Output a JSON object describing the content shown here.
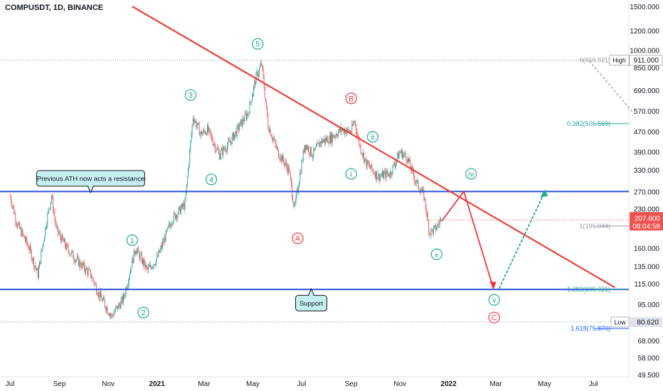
{
  "symbol_title": "COMPUSDT, 1D, BINANCE",
  "colors": {
    "up": "#26a69a",
    "down": "#ef5350",
    "trend": "#f0302a",
    "level": "#2952d9",
    "wave": "#22ab94",
    "corrective": "#f23645",
    "projection_down": "#f23645",
    "projection_up": "#22ab94",
    "fib_blue": "#2962ff",
    "callout_bg": "#c6efef"
  },
  "chart_data": {
    "type": "candlestick",
    "title": "COMPUSDT, 1D, BINANCE",
    "y_scale": "log",
    "ylim": [
      49.5,
      1500
    ],
    "x_ticks": [
      "Jul",
      "Sep",
      "Nov",
      "2021",
      "Mar",
      "May",
      "Jul",
      "Sep",
      "Nov",
      "2022",
      "Mar",
      "May",
      "Jul"
    ],
    "y_ticks": [
      "1500.000",
      "1200.000",
      "1000.000",
      "850.000",
      "690.000",
      "570.000",
      "470.000",
      "390.000",
      "330.000",
      "270.000",
      "230.000",
      "160.000",
      "135.000",
      "115.000",
      "95.000",
      "80.620",
      "68.000",
      "58.000",
      "49.500"
    ],
    "y_tick_values": [
      1500,
      1200,
      1000,
      850,
      690,
      570,
      470,
      390,
      330,
      270,
      230,
      160,
      135,
      115,
      95,
      80.62,
      68,
      58,
      49.5
    ],
    "price_path": [
      [
        "2020-07-01",
        260
      ],
      [
        "2020-07-10",
        200
      ],
      [
        "2020-07-25",
        160
      ],
      [
        "2020-08-05",
        125
      ],
      [
        "2020-08-15",
        200
      ],
      [
        "2020-08-22",
        260
      ],
      [
        "2020-08-28",
        190
      ],
      [
        "2020-09-10",
        160
      ],
      [
        "2020-09-25",
        140
      ],
      [
        "2020-10-10",
        125
      ],
      [
        "2020-10-20",
        105
      ],
      [
        "2020-11-05",
        85
      ],
      [
        "2020-11-20",
        100
      ],
      [
        "2020-12-05",
        160
      ],
      [
        "2020-12-20",
        130
      ],
      [
        "2021-01-01",
        145
      ],
      [
        "2021-01-20",
        210
      ],
      [
        "2021-02-05",
        240
      ],
      [
        "2021-02-15",
        540
      ],
      [
        "2021-02-25",
        460
      ],
      [
        "2021-03-05",
        480
      ],
      [
        "2021-03-20",
        380
      ],
      [
        "2021-04-01",
        420
      ],
      [
        "2021-04-15",
        500
      ],
      [
        "2021-04-25",
        560
      ],
      [
        "2021-05-05",
        780
      ],
      [
        "2021-05-12",
        880
      ],
      [
        "2021-05-20",
        500
      ],
      [
        "2021-06-01",
        390
      ],
      [
        "2021-06-15",
        330
      ],
      [
        "2021-06-22",
        230
      ],
      [
        "2021-07-05",
        420
      ],
      [
        "2021-07-15",
        380
      ],
      [
        "2021-07-25",
        430
      ],
      [
        "2021-08-05",
        440
      ],
      [
        "2021-08-20",
        480
      ],
      [
        "2021-09-01",
        470
      ],
      [
        "2021-09-05",
        520
      ],
      [
        "2021-09-12",
        410
      ],
      [
        "2021-09-20",
        350
      ],
      [
        "2021-10-05",
        310
      ],
      [
        "2021-10-20",
        320
      ],
      [
        "2021-11-01",
        390
      ],
      [
        "2021-11-10",
        370
      ],
      [
        "2021-11-20",
        300
      ],
      [
        "2021-12-01",
        260
      ],
      [
        "2021-12-08",
        185
      ],
      [
        "2021-12-15",
        190
      ],
      [
        "2021-12-22",
        207.6
      ]
    ],
    "last_price": "207.600",
    "countdown": "08:04:58",
    "high_price": "911.000",
    "low_price": "80.620",
    "high_label": "High",
    "low_label": "Low",
    "fib_levels": [
      {
        "label": "0(910.921)",
        "value": 910.921
      },
      {
        "label": "0.382(506.569)",
        "value": 506.569
      },
      {
        "label": "1(196.044)",
        "value": 196.044
      },
      {
        "label": "1.382(109.021)",
        "value": 109.021
      },
      {
        "label": "1.618(75.870)",
        "value": 75.87
      }
    ],
    "horizontal_levels": [
      270,
      109
    ],
    "trendline": [
      [
        "2020-12-01",
        1500
      ],
      [
        "2022-07-28",
        111
      ]
    ],
    "projection_down": [
      [
        "2021-12-23",
        205
      ],
      [
        "2022-01-20",
        270
      ],
      [
        "2022-02-26",
        110
      ]
    ],
    "projection_up": [
      [
        "2022-02-26",
        110
      ],
      [
        "2022-05-01",
        268
      ]
    ],
    "dashed_projection": [
      [
        "2022-06-26",
        906
      ],
      [
        "2022-08-20",
        560
      ]
    ],
    "wave_labels": [
      {
        "text": "1",
        "date": "2020-12-01",
        "price": 172,
        "style": "impulse"
      },
      {
        "text": "2",
        "date": "2020-12-15",
        "price": 88,
        "style": "impulse"
      },
      {
        "text": "3",
        "date": "2021-02-12",
        "price": 660,
        "style": "impulse"
      },
      {
        "text": "4",
        "date": "2021-03-10",
        "price": 302,
        "style": "impulse"
      },
      {
        "text": "5",
        "date": "2021-05-07",
        "price": 1060,
        "style": "impulse"
      },
      {
        "text": "A",
        "date": "2021-06-26",
        "price": 175,
        "style": "corrective"
      },
      {
        "text": "B",
        "date": "2021-09-01",
        "price": 640,
        "style": "corrective"
      },
      {
        "text": "C",
        "date": "2022-02-27",
        "price": 84,
        "style": "corrective"
      },
      {
        "text": "i",
        "date": "2021-09-01",
        "price": 318,
        "style": "minor"
      },
      {
        "text": "ii",
        "date": "2021-09-28",
        "price": 448,
        "style": "minor"
      },
      {
        "text": "iii",
        "date": "2021-12-17",
        "price": 151,
        "style": "minor"
      },
      {
        "text": "iv",
        "date": "2022-01-29",
        "price": 318,
        "style": "minor"
      },
      {
        "text": "v",
        "date": "2022-02-27",
        "price": 99,
        "style": "minor"
      }
    ],
    "callouts": [
      {
        "text": "Previous ATH now acts a resistance",
        "date": "2020-10-10",
        "price": 305
      },
      {
        "text": "Support",
        "date": "2021-07-13",
        "price": 96
      }
    ]
  }
}
